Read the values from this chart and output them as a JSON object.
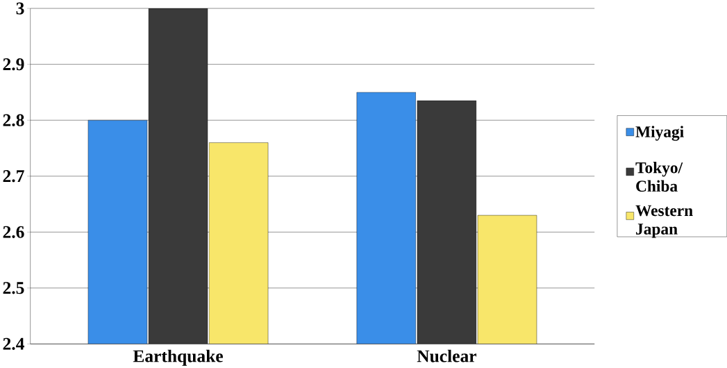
{
  "chart_data": {
    "type": "bar",
    "categories": [
      "Earthquake",
      "Nuclear"
    ],
    "series": [
      {
        "name": "Miyagi",
        "color": "#3a8ee8",
        "values": [
          2.8,
          2.85
        ]
      },
      {
        "name": "Tokyo/ Chiba",
        "color": "#3a3a3a",
        "values": [
          3.0,
          2.835
        ]
      },
      {
        "name": "Western Japan",
        "color": "#f8e66a",
        "values": [
          2.76,
          2.63
        ]
      }
    ],
    "ylim": [
      2.4,
      3
    ],
    "yticks": [
      2.4,
      2.5,
      2.6,
      2.7,
      2.8,
      2.9,
      3
    ],
    "grid": "y",
    "legend": "right"
  }
}
